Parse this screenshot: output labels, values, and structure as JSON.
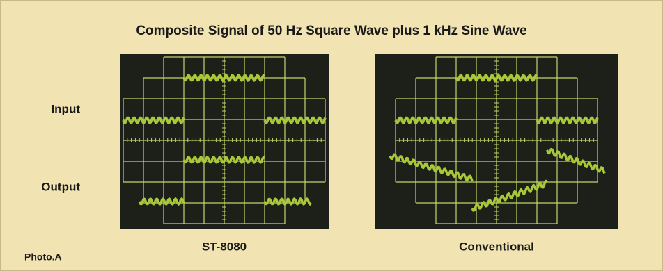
{
  "header": {
    "title": "Composite Signal of 50 Hz Square Wave plus 1 kHz Sine Wave"
  },
  "row_labels": [
    "Input",
    "Output"
  ],
  "panels": [
    {
      "caption": "ST-8080"
    },
    {
      "caption": "Conventional"
    }
  ],
  "footer": {
    "photo_label": "Photo.A"
  }
}
